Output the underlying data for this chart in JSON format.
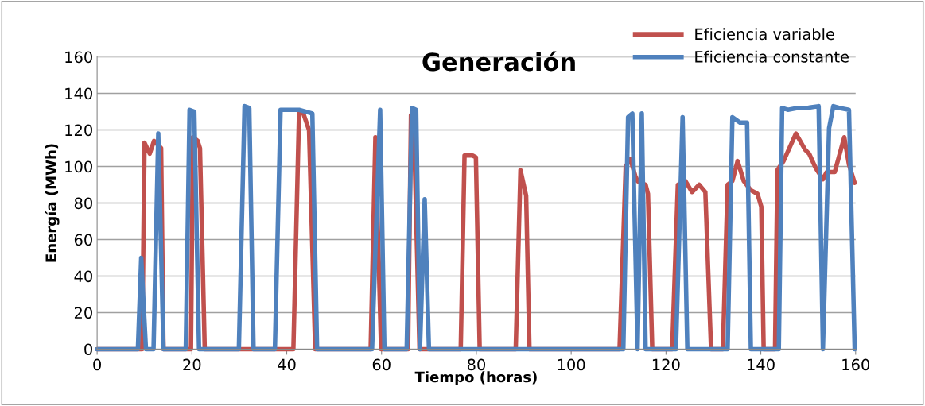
{
  "chart_data": {
    "type": "line",
    "title": "Generación",
    "xlabel": "Tiempo (horas)",
    "ylabel": "Energía (MWh)",
    "xlim": [
      0,
      160
    ],
    "xticks": [
      0,
      20,
      40,
      60,
      80,
      100,
      120,
      140,
      160
    ],
    "ylim": [
      0,
      160
    ],
    "yticks": [
      0,
      20,
      40,
      60,
      80,
      100,
      120,
      140,
      160
    ],
    "grid": "y",
    "legend": "top right",
    "marker": "none",
    "line_style": "solid",
    "series": [
      {
        "name": "Eficiencia variable",
        "color": "#c0504d",
        "x": [
          0,
          9.5,
          10,
          11.1,
          12,
          13.5,
          14,
          19.8,
          20.2,
          21.2,
          21.7,
          22.7,
          41.4,
          42.6,
          43.5,
          44.7,
          46,
          57.7,
          58.7,
          59.9,
          65.6,
          66.2,
          66.8,
          68,
          76.7,
          77.5,
          79.2,
          79.9,
          80.7,
          88.3,
          89.3,
          90.5,
          91.2,
          110.2,
          111.5,
          112.5,
          113.5,
          114,
          115.7,
          116.2,
          117.1,
          121.3,
          122.5,
          124.1,
          125.5,
          127,
          128.3,
          129.5,
          132,
          133,
          134,
          135.1,
          136.4,
          137.9,
          139.3,
          140.1,
          140.6,
          143,
          143.5,
          144.8,
          147.4,
          149.4,
          150.2,
          151.6,
          153.1,
          153.9,
          155.6,
          157.6,
          158.6,
          159.8
        ],
        "values": [
          0,
          0,
          113,
          107,
          114,
          110,
          0,
          0,
          116,
          114,
          110,
          0,
          0,
          130,
          129,
          120,
          0,
          0,
          116,
          0,
          0,
          128,
          125,
          0,
          0,
          106,
          106,
          105,
          0,
          0,
          98,
          84,
          0,
          0,
          100,
          104,
          95,
          92,
          90,
          85,
          0,
          0,
          90,
          92,
          86,
          90,
          86,
          0,
          0,
          90,
          92,
          103,
          92,
          87,
          85,
          78,
          0,
          0,
          98,
          103,
          118,
          109,
          107,
          99,
          93,
          97,
          97,
          116,
          101,
          91
        ]
      },
      {
        "name": "Eficiencia constante",
        "color": "#4f81bd",
        "x": [
          0,
          8.6,
          9.3,
          10.3,
          11.9,
          12.9,
          14,
          18.7,
          19.5,
          20.5,
          21.5,
          29.9,
          31.1,
          32.1,
          33,
          37.5,
          38.7,
          42.6,
          45.4,
          46.4,
          58,
          59.7,
          60.6,
          65.3,
          66.4,
          67.3,
          68.1,
          69.1,
          70,
          111,
          112,
          112.9,
          114,
          114.9,
          115.7,
          122.1,
          123.5,
          124.5,
          133,
          134,
          135.6,
          137.1,
          137.9,
          143.8,
          144.5,
          145.7,
          147.7,
          149.7,
          152.2,
          153.1,
          154.4,
          155.3,
          156.6,
          158.6,
          159.8
        ],
        "values": [
          0,
          0,
          50,
          0,
          0,
          118,
          0,
          0,
          131,
          130,
          0,
          0,
          133,
          132,
          0,
          0,
          131,
          131,
          129,
          0,
          0,
          131,
          0,
          0,
          132,
          131,
          0,
          82,
          0,
          0,
          127,
          129,
          0,
          129,
          0,
          0,
          127,
          0,
          0,
          127,
          124,
          124,
          0,
          0,
          132,
          131,
          132,
          132,
          133,
          0,
          121,
          133,
          132,
          131,
          0
        ]
      }
    ]
  }
}
